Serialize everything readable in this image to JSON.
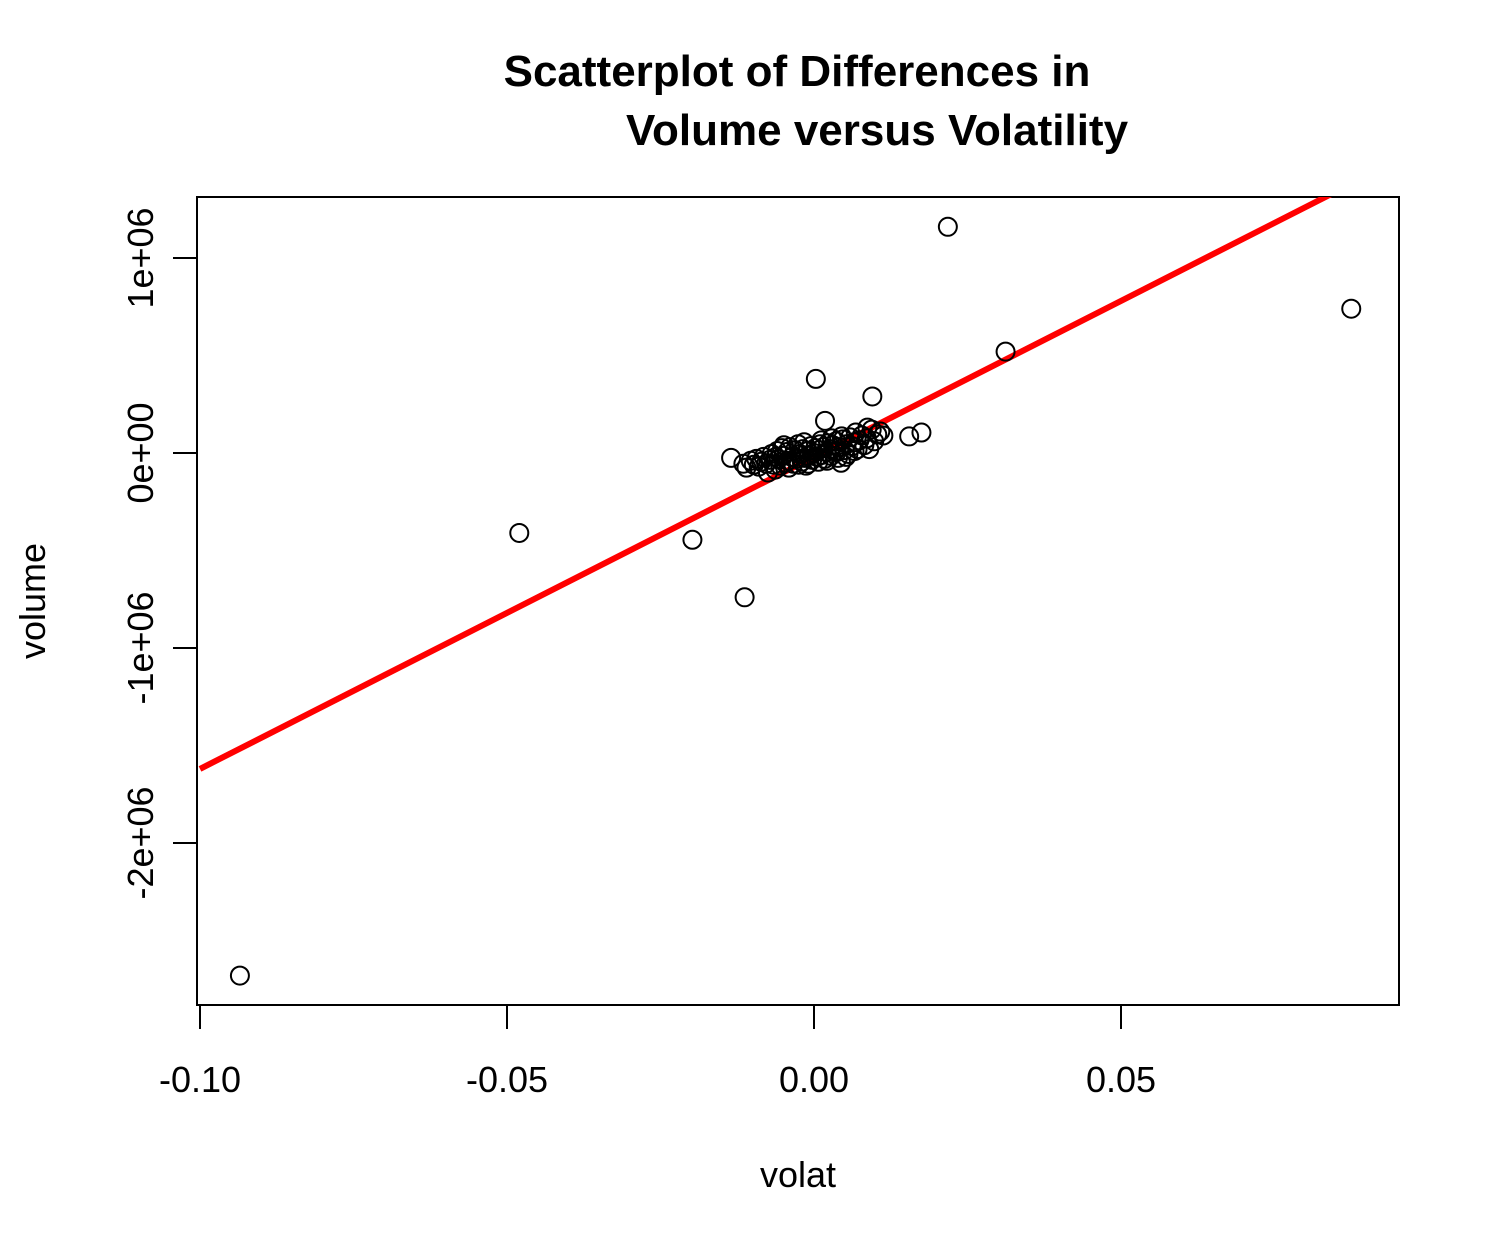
{
  "chart_data": {
    "type": "scatter",
    "title": "Scatterplot of Differences in",
    "subtitle": "Volume versus Volatility",
    "xlabel": "volat",
    "ylabel": "volume",
    "xlim": [
      -0.1,
      0.095
    ],
    "ylim": [
      -2800000,
      1330000
    ],
    "xticks": [
      -0.1,
      -0.05,
      0.0,
      0.05
    ],
    "xtick_labels": [
      "-0.10",
      "-0.05",
      "0.00",
      "0.05"
    ],
    "yticks": [
      1000000,
      0,
      -1000000,
      -2000000
    ],
    "ytick_labels": [
      "1e+06",
      "0e+00",
      "-1e+06",
      "-2e+06"
    ],
    "grid": false,
    "legend": "none",
    "point_color": "#000000",
    "line_color": "#ff0000",
    "regression_line": {
      "intercept": -20000,
      "slope": 16000000
    },
    "outliers": [
      {
        "x": -0.0935,
        "y": -2680000
      },
      {
        "x": -0.048,
        "y": -410000
      },
      {
        "x": -0.0198,
        "y": -445000
      },
      {
        "x": -0.0113,
        "y": -740000
      },
      {
        "x": -0.0135,
        "y": -25000
      },
      {
        "x": 0.0003,
        "y": 380000
      },
      {
        "x": 0.0018,
        "y": 165000
      },
      {
        "x": 0.0095,
        "y": 290000
      },
      {
        "x": 0.0155,
        "y": 85000
      },
      {
        "x": 0.0175,
        "y": 105000
      },
      {
        "x": 0.0218,
        "y": 1160000
      },
      {
        "x": 0.0312,
        "y": 520000
      },
      {
        "x": 0.0875,
        "y": 740000
      }
    ],
    "cluster_points": [
      {
        "x": -0.0115,
        "y": -55000
      },
      {
        "x": -0.011,
        "y": -75000
      },
      {
        "x": -0.0103,
        "y": -40000
      },
      {
        "x": -0.0098,
        "y": -60000
      },
      {
        "x": -0.0094,
        "y": -30000
      },
      {
        "x": -0.009,
        "y": -70000
      },
      {
        "x": -0.0086,
        "y": -45000
      },
      {
        "x": -0.0082,
        "y": -20000
      },
      {
        "x": -0.0078,
        "y": -55000
      },
      {
        "x": -0.0075,
        "y": -100000
      },
      {
        "x": -0.0072,
        "y": -35000
      },
      {
        "x": -0.0069,
        "y": -5000
      },
      {
        "x": -0.0066,
        "y": -60000
      },
      {
        "x": -0.0063,
        "y": -85000
      },
      {
        "x": -0.006,
        "y": 10000
      },
      {
        "x": -0.0058,
        "y": -30000
      },
      {
        "x": -0.0055,
        "y": -65000
      },
      {
        "x": -0.0052,
        "y": 25000
      },
      {
        "x": -0.005,
        "y": -15000
      },
      {
        "x": -0.0047,
        "y": -50000
      },
      {
        "x": -0.0044,
        "y": 5000
      },
      {
        "x": -0.0042,
        "y": -40000
      },
      {
        "x": -0.0039,
        "y": 30000
      },
      {
        "x": -0.0036,
        "y": -20000
      },
      {
        "x": -0.0034,
        "y": -55000
      },
      {
        "x": -0.0031,
        "y": 15000
      },
      {
        "x": -0.0028,
        "y": -30000
      },
      {
        "x": -0.0026,
        "y": 45000
      },
      {
        "x": -0.0023,
        "y": -5000
      },
      {
        "x": -0.002,
        "y": -45000
      },
      {
        "x": -0.0018,
        "y": 20000
      },
      {
        "x": -0.0015,
        "y": -25000
      },
      {
        "x": -0.0013,
        "y": -65000
      },
      {
        "x": -0.001,
        "y": 10000
      },
      {
        "x": -0.0008,
        "y": -15000
      },
      {
        "x": -0.0005,
        "y": 35000
      },
      {
        "x": -0.0003,
        "y": -35000
      },
      {
        "x": 0.0,
        "y": 0
      },
      {
        "x": 0.0002,
        "y": 25000
      },
      {
        "x": 0.0005,
        "y": -20000
      },
      {
        "x": 0.0008,
        "y": 15000
      },
      {
        "x": 0.001,
        "y": 45000
      },
      {
        "x": 0.0013,
        "y": -10000
      },
      {
        "x": 0.0015,
        "y": 30000
      },
      {
        "x": 0.0018,
        "y": -30000
      },
      {
        "x": 0.002,
        "y": 5000
      },
      {
        "x": 0.0023,
        "y": 50000
      },
      {
        "x": 0.0026,
        "y": 20000
      },
      {
        "x": 0.0028,
        "y": -15000
      },
      {
        "x": 0.0031,
        "y": 40000
      },
      {
        "x": 0.0034,
        "y": 10000
      },
      {
        "x": 0.0036,
        "y": 60000
      },
      {
        "x": 0.0039,
        "y": -25000
      },
      {
        "x": 0.0042,
        "y": 30000
      },
      {
        "x": 0.0044,
        "y": -50000
      },
      {
        "x": 0.0047,
        "y": 70000
      },
      {
        "x": 0.005,
        "y": 15000
      },
      {
        "x": 0.0053,
        "y": 45000
      },
      {
        "x": 0.0056,
        "y": -5000
      },
      {
        "x": 0.0059,
        "y": 80000
      },
      {
        "x": 0.0062,
        "y": 35000
      },
      {
        "x": 0.0065,
        "y": 55000
      },
      {
        "x": 0.0068,
        "y": 105000
      },
      {
        "x": 0.0071,
        "y": 20000
      },
      {
        "x": 0.0074,
        "y": 65000
      },
      {
        "x": 0.0078,
        "y": 90000
      },
      {
        "x": 0.0082,
        "y": 40000
      },
      {
        "x": 0.0086,
        "y": 75000
      },
      {
        "x": 0.009,
        "y": 20000
      },
      {
        "x": 0.0094,
        "y": 120000
      },
      {
        "x": 0.0098,
        "y": 60000
      },
      {
        "x": 0.0103,
        "y": 95000
      },
      {
        "x": 0.0108,
        "y": 110000
      },
      {
        "x": 0.0113,
        "y": 90000
      },
      {
        "x": -0.0062,
        "y": -20000
      },
      {
        "x": -0.0041,
        "y": -75000
      },
      {
        "x": -0.0025,
        "y": -60000
      },
      {
        "x": -0.0009,
        "y": -55000
      },
      {
        "x": 0.0007,
        "y": -45000
      },
      {
        "x": 0.0021,
        "y": -40000
      },
      {
        "x": 0.0037,
        "y": 5000
      },
      {
        "x": 0.0052,
        "y": -20000
      },
      {
        "x": 0.0066,
        "y": 10000
      },
      {
        "x": -0.0049,
        "y": 40000
      },
      {
        "x": -0.0016,
        "y": 55000
      },
      {
        "x": 0.0012,
        "y": 65000
      },
      {
        "x": 0.0029,
        "y": 75000
      },
      {
        "x": 0.0045,
        "y": 85000
      },
      {
        "x": 0.0087,
        "y": 130000
      }
    ]
  }
}
